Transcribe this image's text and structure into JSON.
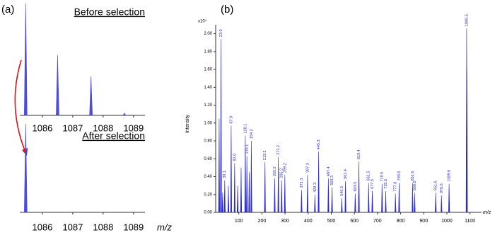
{
  "panel_labels": [
    "(a)",
    "(b)"
  ],
  "chart_data": [
    {
      "type": "spectrum",
      "title": "Before selection",
      "x": [
        1085.45,
        1086.5,
        1087.6,
        1088.7
      ],
      "values": [
        100,
        54,
        35,
        2
      ],
      "xlim": [
        1085,
        1089.4
      ],
      "ylim": [
        0,
        100
      ],
      "xticks": [
        1086,
        1087,
        1088,
        1089
      ],
      "color": "#4b4be0"
    },
    {
      "type": "spectrum",
      "title": "After selection",
      "x": [
        1085.45
      ],
      "values": [
        100
      ],
      "xlim": [
        1085,
        1089.4
      ],
      "ylim": [
        0,
        100
      ],
      "xticks": [
        1086,
        1087,
        1088,
        1089
      ],
      "xlabel": "m/z",
      "color": "#4b4be0"
    },
    {
      "type": "spectrum",
      "xlabel": "m/z",
      "ylabel": "Intensity",
      "y_multiplier": "x10⁴",
      "x": [
        15,
        23.0,
        30,
        39.1,
        55,
        67.0,
        82.0,
        95,
        110,
        128.1,
        135.1,
        145,
        154.2,
        213.2,
        255.2,
        271.2,
        285.2,
        299.2,
        371.3,
        397.3,
        429.3,
        445.3,
        487.4,
        503.3,
        545.5,
        561.4,
        603.5,
        619.4,
        661.5,
        677.5,
        719.5,
        735.5,
        777.6,
        793.5,
        851.6,
        860.6,
        951.6,
        976.6,
        1009.6,
        1085.5,
        1086.5
      ],
      "values": [
        1.05,
        1.94,
        0.22,
        0.36,
        0.3,
        0.97,
        0.55,
        0.3,
        0.5,
        0.86,
        0.63,
        0.45,
        0.8,
        0.56,
        0.38,
        0.62,
        0.36,
        0.42,
        0.25,
        0.42,
        0.2,
        0.68,
        0.38,
        0.28,
        0.16,
        0.35,
        0.21,
        0.57,
        0.33,
        0.24,
        0.32,
        0.24,
        0.21,
        0.33,
        0.33,
        0.22,
        0.22,
        0.19,
        0.32,
        2.06,
        1.59
      ],
      "peak_labels": [
        null,
        "23.0",
        null,
        "39.1",
        null,
        "67.0",
        "82.0",
        null,
        null,
        "128.1",
        "135.1",
        null,
        "154.2",
        "213.2",
        "255.2",
        "271.2",
        "285.2",
        "299.2",
        "371.3",
        "397.3",
        "429.3",
        "445.3",
        "487.4",
        "503.3",
        "545.5",
        "561.4",
        "603.5",
        "619.4",
        "661.5",
        "677.5",
        "719.5",
        "735.5",
        "777.6",
        "793.5",
        "851.6",
        "860.6",
        "951.6",
        "976.6",
        "1009.6",
        "1085.5",
        null
      ],
      "xlim": [
        0,
        1150
      ],
      "ylim": [
        0,
        2.1
      ],
      "xticks": [
        100,
        200,
        300,
        400,
        500,
        600,
        700,
        800,
        900,
        1000,
        1100
      ],
      "yticks": [
        {
          "value": 0,
          "label": "0.00"
        },
        {
          "value": 0.2,
          "label": "0.20"
        },
        {
          "value": 0.4,
          "label": "0.40"
        },
        {
          "value": 0.6,
          "label": "0.60"
        },
        {
          "value": 0.8,
          "label": "0.80"
        },
        {
          "value": 1,
          "label": "1.00"
        },
        {
          "value": 1.2,
          "label": "1.20"
        },
        {
          "value": 1.4,
          "label": "1.40"
        },
        {
          "value": 1.6,
          "label": "1.60"
        },
        {
          "value": 1.8,
          "label": "1.80"
        },
        {
          "value": 2,
          "label": "2.00"
        }
      ],
      "color": "#2a2ad8"
    }
  ]
}
